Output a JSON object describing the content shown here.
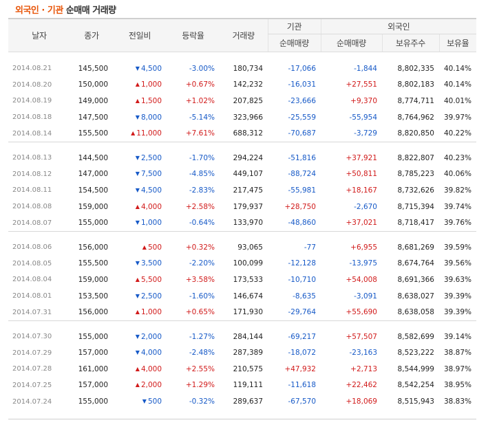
{
  "title": {
    "accent": "외국인 · 기관",
    "rest": " 순매매 거래량"
  },
  "headers": {
    "date": "날자",
    "close": "종가",
    "change": "전일비",
    "rate": "등락율",
    "volume": "거래량",
    "institution": "기관",
    "foreign": "외국인",
    "inst_net": "순매매량",
    "for_net": "순매매량",
    "holdings": "보유주수",
    "hold_ratio": "보유율"
  },
  "colors": {
    "up": "#d11a1a",
    "down": "#1659c7",
    "accent": "#e8560a"
  },
  "groups": [
    [
      {
        "date": "2014.08.21",
        "close": "145,500",
        "dir": "down",
        "change": "4,500",
        "rate": "-3.00%",
        "volume": "180,734",
        "inst": "-17,066",
        "foreign": "-1,844",
        "holdings": "8,802,335",
        "ratio": "40.14%"
      },
      {
        "date": "2014.08.20",
        "close": "150,000",
        "dir": "up",
        "change": "1,000",
        "rate": "+0.67%",
        "volume": "142,232",
        "inst": "-16,031",
        "foreign": "+27,551",
        "holdings": "8,802,183",
        "ratio": "40.14%"
      },
      {
        "date": "2014.08.19",
        "close": "149,000",
        "dir": "up",
        "change": "1,500",
        "rate": "+1.02%",
        "volume": "207,825",
        "inst": "-23,666",
        "foreign": "+9,370",
        "holdings": "8,774,711",
        "ratio": "40.01%"
      },
      {
        "date": "2014.08.18",
        "close": "147,500",
        "dir": "down",
        "change": "8,000",
        "rate": "-5.14%",
        "volume": "323,966",
        "inst": "-25,559",
        "foreign": "-55,954",
        "holdings": "8,764,962",
        "ratio": "39.97%"
      },
      {
        "date": "2014.08.14",
        "close": "155,500",
        "dir": "up",
        "change": "11,000",
        "rate": "+7.61%",
        "volume": "688,312",
        "inst": "-70,687",
        "foreign": "-3,729",
        "holdings": "8,820,850",
        "ratio": "40.22%"
      }
    ],
    [
      {
        "date": "2014.08.13",
        "close": "144,500",
        "dir": "down",
        "change": "2,500",
        "rate": "-1.70%",
        "volume": "294,224",
        "inst": "-51,816",
        "foreign": "+37,921",
        "holdings": "8,822,807",
        "ratio": "40.23%"
      },
      {
        "date": "2014.08.12",
        "close": "147,000",
        "dir": "down",
        "change": "7,500",
        "rate": "-4.85%",
        "volume": "449,107",
        "inst": "-88,724",
        "foreign": "+50,811",
        "holdings": "8,785,223",
        "ratio": "40.06%"
      },
      {
        "date": "2014.08.11",
        "close": "154,500",
        "dir": "down",
        "change": "4,500",
        "rate": "-2.83%",
        "volume": "217,475",
        "inst": "-55,981",
        "foreign": "+18,167",
        "holdings": "8,732,626",
        "ratio": "39.82%"
      },
      {
        "date": "2014.08.08",
        "close": "159,000",
        "dir": "up",
        "change": "4,000",
        "rate": "+2.58%",
        "volume": "179,937",
        "inst": "+28,750",
        "foreign": "-2,670",
        "holdings": "8,715,394",
        "ratio": "39.74%"
      },
      {
        "date": "2014.08.07",
        "close": "155,000",
        "dir": "down",
        "change": "1,000",
        "rate": "-0.64%",
        "volume": "133,970",
        "inst": "-48,860",
        "foreign": "+37,021",
        "holdings": "8,718,417",
        "ratio": "39.76%"
      }
    ],
    [
      {
        "date": "2014.08.06",
        "close": "156,000",
        "dir": "up",
        "change": "500",
        "rate": "+0.32%",
        "volume": "93,065",
        "inst": "-77",
        "foreign": "+6,955",
        "holdings": "8,681,269",
        "ratio": "39.59%"
      },
      {
        "date": "2014.08.05",
        "close": "155,500",
        "dir": "down",
        "change": "3,500",
        "rate": "-2.20%",
        "volume": "100,099",
        "inst": "-12,128",
        "foreign": "-13,975",
        "holdings": "8,674,764",
        "ratio": "39.56%"
      },
      {
        "date": "2014.08.04",
        "close": "159,000",
        "dir": "up",
        "change": "5,500",
        "rate": "+3.58%",
        "volume": "173,533",
        "inst": "-10,710",
        "foreign": "+54,008",
        "holdings": "8,691,366",
        "ratio": "39.63%"
      },
      {
        "date": "2014.08.01",
        "close": "153,500",
        "dir": "down",
        "change": "2,500",
        "rate": "-1.60%",
        "volume": "146,674",
        "inst": "-8,635",
        "foreign": "-3,091",
        "holdings": "8,638,027",
        "ratio": "39.39%"
      },
      {
        "date": "2014.07.31",
        "close": "156,000",
        "dir": "up",
        "change": "1,000",
        "rate": "+0.65%",
        "volume": "171,930",
        "inst": "-29,764",
        "foreign": "+55,690",
        "holdings": "8,638,058",
        "ratio": "39.39%"
      }
    ],
    [
      {
        "date": "2014.07.30",
        "close": "155,000",
        "dir": "down",
        "change": "2,000",
        "rate": "-1.27%",
        "volume": "284,144",
        "inst": "-69,217",
        "foreign": "+57,507",
        "holdings": "8,582,699",
        "ratio": "39.14%"
      },
      {
        "date": "2014.07.29",
        "close": "157,000",
        "dir": "down",
        "change": "4,000",
        "rate": "-2.48%",
        "volume": "287,389",
        "inst": "-18,072",
        "foreign": "-23,163",
        "holdings": "8,523,222",
        "ratio": "38.87%"
      },
      {
        "date": "2014.07.28",
        "close": "161,000",
        "dir": "up",
        "change": "4,000",
        "rate": "+2.55%",
        "volume": "210,575",
        "inst": "+47,932",
        "foreign": "+2,713",
        "holdings": "8,544,999",
        "ratio": "38.97%"
      },
      {
        "date": "2014.07.25",
        "close": "157,000",
        "dir": "up",
        "change": "2,000",
        "rate": "+1.29%",
        "volume": "119,111",
        "inst": "-11,618",
        "foreign": "+22,462",
        "holdings": "8,542,254",
        "ratio": "38.95%"
      },
      {
        "date": "2014.07.24",
        "close": "155,000",
        "dir": "down",
        "change": "500",
        "rate": "-0.32%",
        "volume": "289,637",
        "inst": "-67,570",
        "foreign": "+18,069",
        "holdings": "8,515,943",
        "ratio": "38.83%"
      }
    ]
  ]
}
